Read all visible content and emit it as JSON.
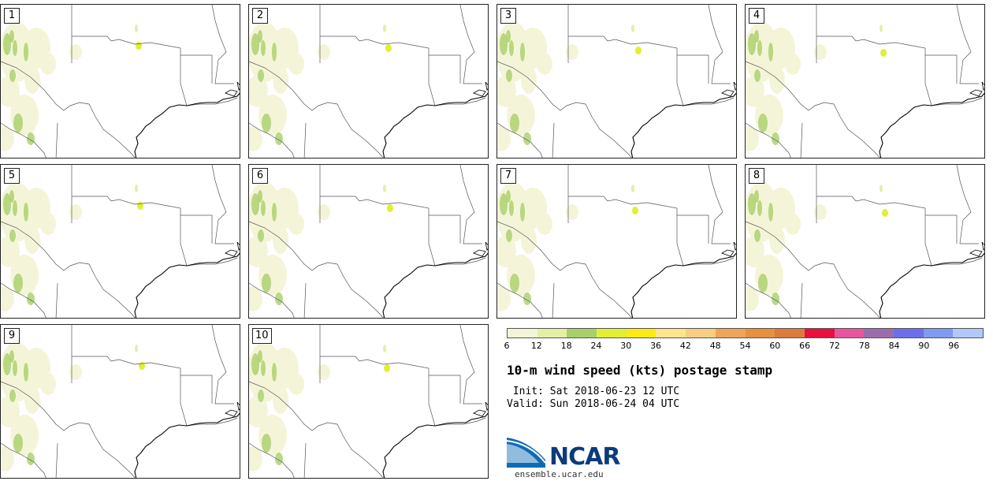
{
  "panels": [
    {
      "label": "1"
    },
    {
      "label": "2"
    },
    {
      "label": "3"
    },
    {
      "label": "4"
    },
    {
      "label": "5"
    },
    {
      "label": "6"
    },
    {
      "label": "7"
    },
    {
      "label": "8"
    },
    {
      "label": "9"
    },
    {
      "label": "10"
    }
  ],
  "colorbar": {
    "colors": [
      "#f4f5d8",
      "#e2f0a4",
      "#a9cf6a",
      "#e1ef34",
      "#fbea16",
      "#fce58c",
      "#f6cf82",
      "#eda55a",
      "#e7913f",
      "#dc7a3c",
      "#e8103e",
      "#e8579e",
      "#9c6dac",
      "#6c70e8",
      "#7f9af0",
      "#b3c8fa"
    ],
    "ticks": [
      "6",
      "12",
      "18",
      "24",
      "30",
      "36",
      "42",
      "48",
      "54",
      "60",
      "66",
      "72",
      "78",
      "84",
      "90",
      "96"
    ]
  },
  "title": "10-m wind speed (kts) postage stamp",
  "init_line": " Init: Sat 2018-06-23 12 UTC",
  "valid_line": "Valid: Sun 2018-06-24 04 UTC",
  "logo": {
    "text": "NCAR",
    "url": "ensemble.ucar.edu",
    "icon": "ncar-swoosh-logo"
  }
}
